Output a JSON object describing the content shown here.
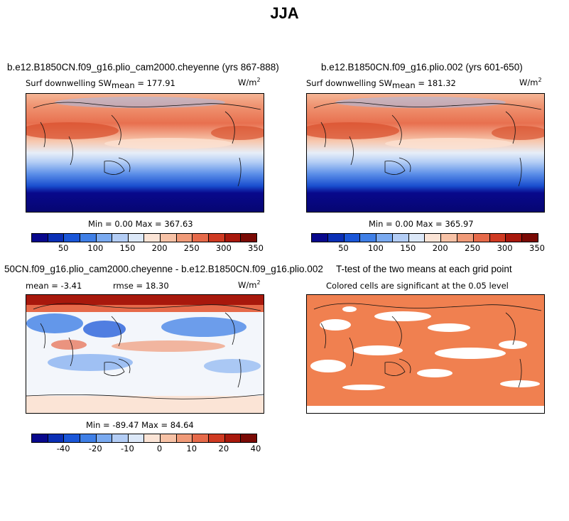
{
  "title": "JJA",
  "panels": [
    {
      "title": "b.e12.B1850CN.f09_g16.plio_cam2000.cheyenne (yrs 867-888)",
      "variable": "Surf downwelling SW",
      "stat_label": "mean",
      "stat_value": "= 177.91",
      "units": "W/m",
      "units_exp": "2",
      "minmax": "Min =    0.00 Max = 367.63",
      "colorbar_ticks": [
        "50",
        "100",
        "150",
        "200",
        "250",
        "300",
        "350"
      ]
    },
    {
      "title": "b.e12.B1850CN.f09_g16.plio.002 (yrs 601-650)",
      "variable": "Surf downwelling SW",
      "stat_label": "mean",
      "stat_value": "= 181.32",
      "units": "W/m",
      "units_exp": "2",
      "minmax": "Min =    0.00 Max = 365.97",
      "colorbar_ticks": [
        "50",
        "100",
        "150",
        "200",
        "250",
        "300",
        "350"
      ]
    },
    {
      "title": "50CN.f09_g16.plio_cam2000.cheyenne - b.e12.B1850CN.f09_g16.plio.002",
      "mean_text": "mean =  -3.41",
      "rmse_text": "rmse =  18.30",
      "units": "W/m",
      "units_exp": "2",
      "minmax": "Min = -89.47 Max =  84.64",
      "colorbar_ticks": [
        "-40",
        "-20",
        "-10",
        "0",
        "10",
        "20",
        "40"
      ]
    },
    {
      "title": "T-test of the two means at each grid point",
      "subtitle": "Colored cells are significant at the 0.05 level"
    }
  ],
  "colors": {
    "abs_scale": [
      "#08088c",
      "#0a2fb5",
      "#1a56d8",
      "#3f7fe6",
      "#7aaaf0",
      "#b3cdf5",
      "#dce8f8",
      "#fbe4d6",
      "#f7c2a6",
      "#f09a78",
      "#e66a4a",
      "#cf3a22",
      "#a8180c",
      "#7a0a05"
    ],
    "diff_scale": [
      "#08088c",
      "#0a2fb5",
      "#1a56d8",
      "#3f7fe6",
      "#7aaaf0",
      "#b3cdf5",
      "#dce8f8",
      "#fbe4d6",
      "#f7c2a6",
      "#f09a78",
      "#e66a4a",
      "#cf3a22",
      "#a8180c",
      "#7a0a05"
    ],
    "ttest_fill": "#f08050"
  }
}
